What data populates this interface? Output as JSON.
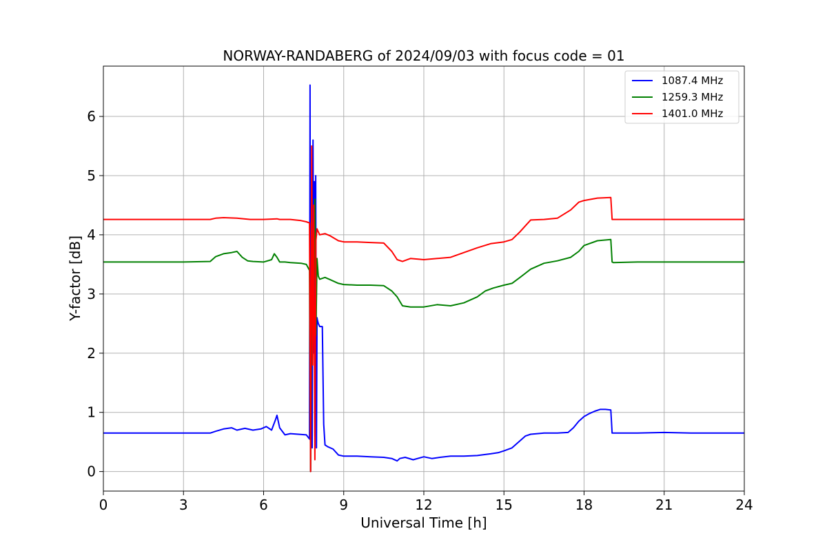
{
  "chart_data": {
    "type": "line",
    "title": "NORWAY-RANDABERG of 2024/09/03 with focus code = 01",
    "xlabel": "Universal Time [h]",
    "ylabel": "Y-factor [dB]",
    "xlim": [
      0,
      24
    ],
    "ylim": [
      -0.33,
      6.85
    ],
    "xticks": [
      0,
      3,
      6,
      9,
      12,
      15,
      18,
      21,
      24
    ],
    "yticks": [
      0,
      1,
      2,
      3,
      4,
      5,
      6
    ],
    "grid": true,
    "legend_position": "top-right",
    "series": [
      {
        "name": "1087.4 MHz",
        "color": "#0000ff",
        "x": [
          0,
          1,
          2,
          3,
          4,
          4.2,
          4.5,
          4.8,
          5.0,
          5.3,
          5.6,
          5.9,
          6.1,
          6.3,
          6.45,
          6.5,
          6.6,
          6.8,
          7.0,
          7.3,
          7.6,
          7.72,
          7.74,
          7.76,
          7.78,
          7.8,
          7.82,
          7.85,
          7.88,
          7.9,
          7.92,
          7.95,
          7.98,
          8.0,
          8.02,
          8.05,
          8.1,
          8.2,
          8.25,
          8.3,
          8.4,
          8.6,
          8.8,
          9.0,
          9.5,
          10.0,
          10.5,
          10.8,
          11.0,
          11.1,
          11.3,
          11.6,
          12.0,
          12.3,
          12.6,
          13.0,
          13.5,
          14.0,
          14.5,
          14.8,
          15.0,
          15.3,
          15.6,
          15.8,
          16.0,
          16.5,
          17.0,
          17.4,
          17.6,
          17.8,
          18.0,
          18.2,
          18.4,
          18.6,
          18.8,
          19.0,
          19.05,
          19.1,
          20,
          21,
          22,
          23,
          24
        ],
        "y": [
          0.65,
          0.65,
          0.65,
          0.65,
          0.65,
          0.68,
          0.72,
          0.74,
          0.7,
          0.73,
          0.7,
          0.72,
          0.76,
          0.7,
          0.88,
          0.95,
          0.74,
          0.62,
          0.64,
          0.63,
          0.62,
          0.55,
          6.53,
          0.0,
          3.8,
          1.2,
          0.4,
          5.6,
          2.0,
          4.9,
          0.6,
          5.0,
          0.4,
          2.6,
          2.55,
          2.5,
          2.45,
          2.45,
          0.8,
          0.45,
          0.42,
          0.38,
          0.28,
          0.26,
          0.26,
          0.25,
          0.24,
          0.22,
          0.18,
          0.22,
          0.24,
          0.2,
          0.25,
          0.22,
          0.24,
          0.26,
          0.26,
          0.27,
          0.3,
          0.32,
          0.35,
          0.4,
          0.52,
          0.6,
          0.63,
          0.65,
          0.65,
          0.66,
          0.74,
          0.85,
          0.93,
          0.98,
          1.02,
          1.05,
          1.05,
          1.04,
          0.65,
          0.65,
          0.65,
          0.66,
          0.65,
          0.65,
          0.65
        ]
      },
      {
        "name": "1259.3 MHz",
        "color": "#008000",
        "x": [
          0,
          1,
          2,
          3,
          4,
          4.2,
          4.5,
          4.8,
          5.0,
          5.2,
          5.4,
          5.6,
          6.0,
          6.3,
          6.4,
          6.5,
          6.6,
          6.8,
          7.0,
          7.4,
          7.6,
          7.72,
          7.76,
          7.8,
          7.84,
          7.88,
          7.92,
          7.96,
          8.0,
          8.05,
          8.1,
          8.3,
          8.5,
          8.8,
          9.0,
          9.5,
          10.0,
          10.5,
          10.8,
          11.0,
          11.2,
          11.5,
          12.0,
          12.5,
          13.0,
          13.5,
          14.0,
          14.3,
          14.6,
          15.0,
          15.3,
          15.6,
          16.0,
          16.5,
          17.0,
          17.5,
          17.8,
          18.0,
          18.5,
          19.0,
          19.05,
          19.1,
          20,
          21,
          22,
          23,
          24
        ],
        "y": [
          3.54,
          3.54,
          3.54,
          3.54,
          3.55,
          3.63,
          3.68,
          3.7,
          3.72,
          3.62,
          3.56,
          3.55,
          3.54,
          3.58,
          3.68,
          3.62,
          3.54,
          3.54,
          3.53,
          3.52,
          3.5,
          3.4,
          0.0,
          3.3,
          3.9,
          3.2,
          4.6,
          2.3,
          3.6,
          3.3,
          3.25,
          3.28,
          3.24,
          3.18,
          3.16,
          3.15,
          3.15,
          3.14,
          3.05,
          2.95,
          2.8,
          2.78,
          2.78,
          2.82,
          2.8,
          2.85,
          2.95,
          3.05,
          3.1,
          3.15,
          3.18,
          3.28,
          3.42,
          3.52,
          3.56,
          3.62,
          3.72,
          3.82,
          3.9,
          3.92,
          3.54,
          3.53,
          3.54,
          3.54,
          3.54,
          3.54,
          3.54
        ]
      },
      {
        "name": "1401.0 MHz",
        "color": "#ff0000",
        "x": [
          0,
          1,
          2,
          3,
          4,
          4.2,
          4.5,
          5.0,
          5.5,
          6.0,
          6.5,
          6.6,
          7.0,
          7.4,
          7.6,
          7.72,
          7.76,
          7.8,
          7.84,
          7.88,
          7.92,
          7.96,
          8.0,
          8.05,
          8.1,
          8.3,
          8.5,
          8.8,
          9.0,
          9.5,
          10.0,
          10.5,
          10.8,
          11.0,
          11.2,
          11.5,
          12.0,
          12.5,
          13.0,
          13.5,
          14.0,
          14.5,
          15.0,
          15.3,
          15.6,
          16.0,
          16.5,
          17.0,
          17.5,
          17.8,
          18.0,
          18.5,
          19.0,
          19.05,
          19.1,
          20,
          21,
          22,
          23,
          24
        ],
        "y": [
          4.26,
          4.26,
          4.26,
          4.26,
          4.26,
          4.28,
          4.29,
          4.28,
          4.26,
          4.26,
          4.27,
          4.26,
          4.26,
          4.24,
          4.22,
          4.2,
          0.0,
          5.5,
          1.8,
          4.5,
          0.2,
          3.9,
          4.1,
          4.05,
          4.0,
          4.02,
          3.98,
          3.9,
          3.88,
          3.88,
          3.87,
          3.86,
          3.72,
          3.58,
          3.55,
          3.6,
          3.58,
          3.6,
          3.62,
          3.7,
          3.78,
          3.85,
          3.88,
          3.92,
          4.05,
          4.25,
          4.26,
          4.28,
          4.42,
          4.55,
          4.58,
          4.62,
          4.63,
          4.26,
          4.26,
          4.26,
          4.26,
          4.26,
          4.26,
          4.26
        ]
      }
    ]
  }
}
